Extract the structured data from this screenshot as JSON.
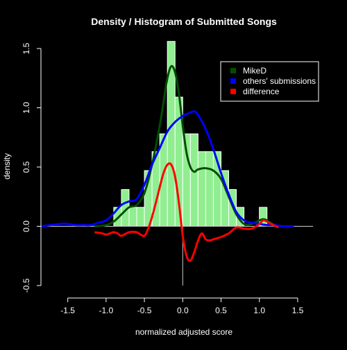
{
  "chart_data": {
    "type": "histogram-density",
    "title": "Density / Histogram of Submitted Songs",
    "xlabel": "normalized adjusted score",
    "ylabel": "density",
    "xlim": [
      -1.85,
      1.7
    ],
    "ylim": [
      -0.5,
      1.5
    ],
    "x_ticks": [
      -1.5,
      -1.0,
      -0.5,
      0.0,
      0.5,
      1.0,
      1.5
    ],
    "x_tick_labels": [
      "-1.5",
      "-1.0",
      "-0.5",
      "0.0",
      "0.5",
      "1.0",
      "1.5"
    ],
    "y_ticks": [
      -0.5,
      0.0,
      0.5,
      1.0,
      1.5
    ],
    "y_tick_labels": [
      "-0.5",
      "0.0",
      "0.5",
      "1.0",
      "1.5"
    ],
    "legend_position": "top-right",
    "histogram": {
      "color": "#90ee90",
      "bin_width": 0.1,
      "bins": [
        {
          "left": -0.9,
          "density": 0.16
        },
        {
          "left": -0.8,
          "density": 0.31
        },
        {
          "left": -0.7,
          "density": 0.16
        },
        {
          "left": -0.6,
          "density": 0.16
        },
        {
          "left": -0.5,
          "density": 0.47
        },
        {
          "left": -0.4,
          "density": 0.63
        },
        {
          "left": -0.3,
          "density": 0.78
        },
        {
          "left": -0.2,
          "density": 1.56
        },
        {
          "left": -0.1,
          "density": 1.09
        },
        {
          "left": 0.0,
          "density": 0.78
        },
        {
          "left": 0.1,
          "density": 0.78
        },
        {
          "left": 0.2,
          "density": 0.63
        },
        {
          "left": 0.3,
          "density": 0.63
        },
        {
          "left": 0.4,
          "density": 0.63
        },
        {
          "left": 0.5,
          "density": 0.47
        },
        {
          "left": 0.6,
          "density": 0.31
        },
        {
          "left": 0.7,
          "density": 0.16
        },
        {
          "left": 1.0,
          "density": 0.16
        }
      ]
    },
    "series": [
      {
        "name": "MikeD",
        "color": "#004d00",
        "x": [
          -1.15,
          -1.0,
          -0.9,
          -0.8,
          -0.7,
          -0.6,
          -0.5,
          -0.4,
          -0.3,
          -0.25,
          -0.2,
          -0.15,
          -0.1,
          -0.05,
          0.0,
          0.05,
          0.1,
          0.15,
          0.2,
          0.3,
          0.4,
          0.5,
          0.6,
          0.7,
          0.8,
          0.9,
          1.0,
          1.05,
          1.1,
          1.2,
          1.3
        ],
        "y": [
          0.0,
          0.01,
          0.04,
          0.1,
          0.16,
          0.18,
          0.28,
          0.52,
          0.85,
          1.05,
          1.25,
          1.35,
          1.3,
          1.12,
          0.85,
          0.62,
          0.5,
          0.46,
          0.48,
          0.49,
          0.47,
          0.4,
          0.25,
          0.1,
          0.02,
          0.02,
          0.05,
          0.06,
          0.05,
          0.01,
          0.0
        ]
      },
      {
        "name": "others' submissions",
        "color": "#0000ff",
        "x": [
          -1.85,
          -1.6,
          -1.5,
          -1.4,
          -1.3,
          -1.2,
          -1.1,
          -1.0,
          -0.9,
          -0.8,
          -0.7,
          -0.6,
          -0.5,
          -0.4,
          -0.3,
          -0.2,
          -0.1,
          0.0,
          0.1,
          0.15,
          0.2,
          0.3,
          0.4,
          0.5,
          0.6,
          0.7,
          0.8,
          0.9,
          1.0,
          1.1,
          1.2,
          1.3,
          1.45
        ],
        "y": [
          0.0,
          0.02,
          0.02,
          0.01,
          0.01,
          0.01,
          0.03,
          0.05,
          0.11,
          0.18,
          0.21,
          0.23,
          0.35,
          0.52,
          0.66,
          0.8,
          0.88,
          0.93,
          0.96,
          0.97,
          0.94,
          0.82,
          0.65,
          0.45,
          0.27,
          0.12,
          0.05,
          0.03,
          0.02,
          0.01,
          0.01,
          0.0,
          0.0
        ]
      },
      {
        "name": "difference",
        "color": "#ff0000",
        "x": [
          -1.15,
          -1.05,
          -1.0,
          -0.95,
          -0.9,
          -0.85,
          -0.8,
          -0.7,
          -0.6,
          -0.55,
          -0.5,
          -0.45,
          -0.4,
          -0.35,
          -0.3,
          -0.25,
          -0.2,
          -0.15,
          -0.1,
          -0.05,
          0.0,
          0.05,
          0.1,
          0.15,
          0.2,
          0.25,
          0.3,
          0.35,
          0.4,
          0.5,
          0.6,
          0.7,
          0.8,
          0.9,
          1.0,
          1.05,
          1.1,
          1.15,
          1.25
        ],
        "y": [
          -0.05,
          -0.06,
          -0.07,
          -0.06,
          -0.05,
          -0.06,
          -0.08,
          -0.05,
          -0.05,
          -0.07,
          -0.08,
          -0.02,
          0.08,
          0.2,
          0.33,
          0.45,
          0.52,
          0.52,
          0.42,
          0.2,
          -0.08,
          -0.25,
          -0.29,
          -0.22,
          -0.12,
          -0.06,
          -0.11,
          -0.12,
          -0.11,
          -0.09,
          -0.06,
          -0.01,
          -0.02,
          -0.02,
          0.02,
          0.05,
          0.04,
          0.02,
          -0.01
        ]
      }
    ]
  }
}
